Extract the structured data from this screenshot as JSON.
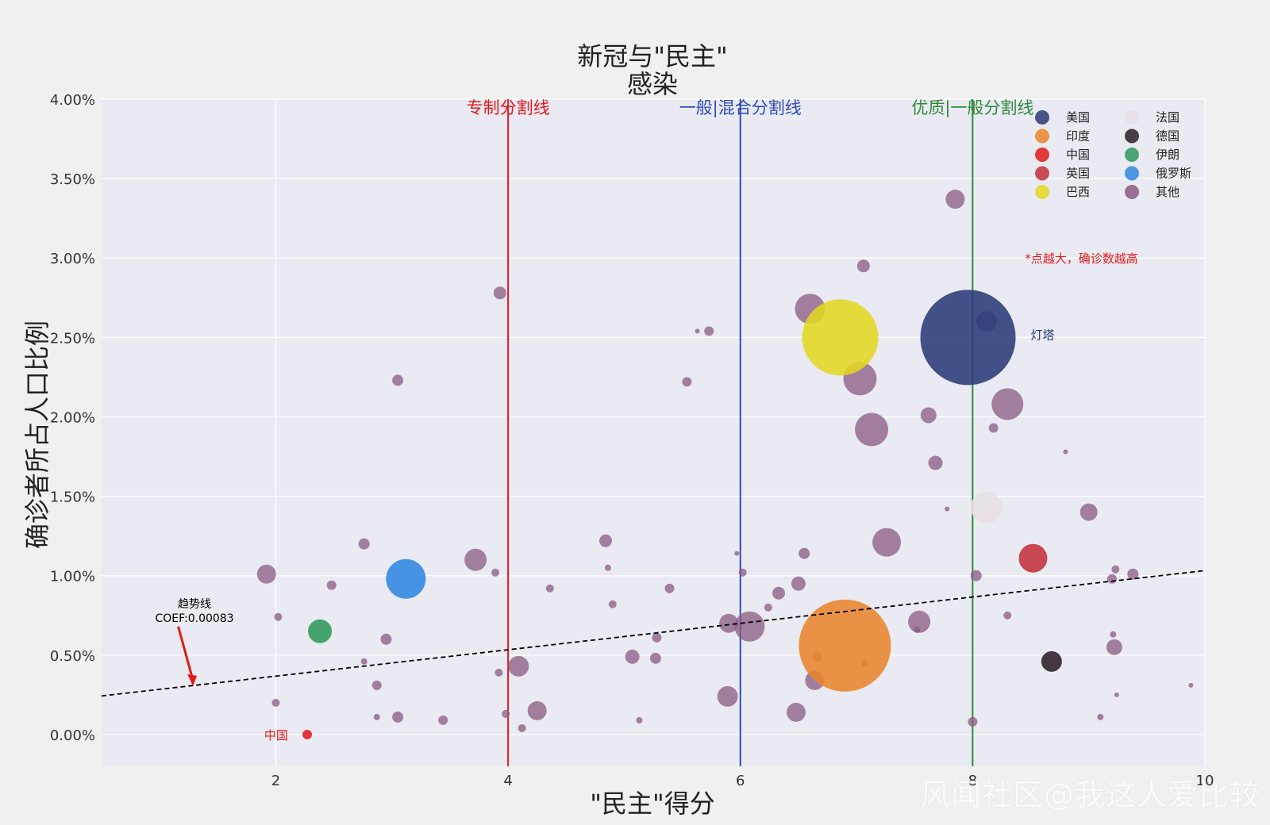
{
  "chart_data": {
    "type": "scatter",
    "title": "新冠与\"民主\"",
    "subtitle": "感染",
    "xlabel": "\"民主\"得分",
    "ylabel": "确诊者所占人口比例",
    "xlim": [
      0.5,
      10
    ],
    "ylim": [
      -0.2,
      4.0
    ],
    "x_ticks": [
      2,
      4,
      6,
      8,
      10
    ],
    "y_ticks": [
      0,
      0.5,
      1.0,
      1.5,
      2.0,
      2.5,
      3.0,
      3.5,
      4.0
    ],
    "y_tick_labels": [
      "0.00%",
      "0.50%",
      "1.00%",
      "1.50%",
      "2.00%",
      "2.50%",
      "3.00%",
      "3.50%",
      "4.00%"
    ],
    "x_tick_labels": [
      "2",
      "4",
      "6",
      "8",
      "10"
    ],
    "grid": true,
    "legend_position": "top-right",
    "background": "#eaeaf2",
    "vlines": [
      {
        "x": 4,
        "label": "专制分割线",
        "color": "#e31a1c"
      },
      {
        "x": 6,
        "label": "一般|混合分割线",
        "color": "#2f4bb5"
      },
      {
        "x": 8,
        "label": "优质|一般分割线",
        "color": "#2e8b3a"
      }
    ],
    "trendline": {
      "x": [
        0.5,
        10
      ],
      "y": [
        0.243,
        1.032
      ],
      "label": "趋势线",
      "coef_label": "COEF:0.00083"
    },
    "annotations": [
      {
        "text": "*点越大，确诊数越高",
        "x": 8.45,
        "y": 3.0,
        "color": "#e31a1c"
      },
      {
        "text": "灯塔",
        "x": 8.5,
        "y": 2.52,
        "color": "#1f3a6e"
      },
      {
        "text": "中国",
        "x": 1.9,
        "y": 0.0,
        "color": "#e31a1c"
      }
    ],
    "series": [
      {
        "name": "美国",
        "color": "#2a3a78",
        "points": [
          [
            7.96,
            2.5,
            60
          ]
        ]
      },
      {
        "name": "印度",
        "color": "#e8852d",
        "points": [
          [
            6.9,
            0.56,
            58
          ]
        ]
      },
      {
        "name": "中国",
        "color": "#e31a1c",
        "points": [
          [
            2.27,
            0.0,
            6
          ]
        ]
      },
      {
        "name": "英国",
        "color": "#c1303b",
        "points": [
          [
            8.52,
            1.11,
            18
          ]
        ]
      },
      {
        "name": "巴西",
        "color": "#e3d722",
        "points": [
          [
            6.86,
            2.5,
            48
          ]
        ]
      },
      {
        "name": "法国",
        "color": "#e8dfe6",
        "points": [
          [
            8.12,
            1.43,
            20
          ]
        ]
      },
      {
        "name": "德国",
        "color": "#2b1f28",
        "points": [
          [
            8.68,
            0.46,
            13
          ]
        ]
      },
      {
        "name": "伊朗",
        "color": "#2e9a5a",
        "points": [
          [
            2.38,
            0.65,
            15
          ]
        ]
      },
      {
        "name": "俄罗斯",
        "color": "#2f86e0",
        "points": [
          [
            3.12,
            0.98,
            25
          ]
        ]
      },
      {
        "name": "其他",
        "color": "#8a5a82",
        "points": [
          [
            7.85,
            3.37,
            12
          ],
          [
            7.06,
            2.95,
            8
          ],
          [
            3.93,
            2.78,
            8
          ],
          [
            6.6,
            2.68,
            19
          ],
          [
            8.12,
            2.6,
            13
          ],
          [
            5.73,
            2.54,
            6
          ],
          [
            5.63,
            2.54,
            3
          ],
          [
            3.05,
            2.23,
            7
          ],
          [
            5.54,
            2.22,
            6
          ],
          [
            7.03,
            2.24,
            21
          ],
          [
            8.3,
            2.08,
            20
          ],
          [
            7.62,
            2.01,
            10
          ],
          [
            7.13,
            1.92,
            21
          ],
          [
            8.18,
            1.93,
            6
          ],
          [
            8.8,
            1.78,
            3
          ],
          [
            7.68,
            1.71,
            9
          ],
          [
            7.78,
            1.42,
            3
          ],
          [
            9.0,
            1.4,
            11
          ],
          [
            7.26,
            1.21,
            18
          ],
          [
            2.76,
            1.2,
            7
          ],
          [
            3.72,
            1.1,
            14
          ],
          [
            4.84,
            1.22,
            8
          ],
          [
            6.55,
            1.14,
            7
          ],
          [
            5.97,
            1.14,
            3
          ],
          [
            1.92,
            1.01,
            12
          ],
          [
            3.89,
            1.02,
            5
          ],
          [
            4.86,
            1.05,
            4
          ],
          [
            6.02,
            1.02,
            5
          ],
          [
            8.03,
            1.0,
            7
          ],
          [
            9.23,
            1.04,
            5
          ],
          [
            9.38,
            1.01,
            7
          ],
          [
            9.2,
            0.98,
            6
          ],
          [
            2.48,
            0.94,
            6
          ],
          [
            4.36,
            0.92,
            5
          ],
          [
            5.39,
            0.92,
            6
          ],
          [
            6.5,
            0.95,
            9
          ],
          [
            6.33,
            0.89,
            8
          ],
          [
            4.9,
            0.82,
            5
          ],
          [
            6.24,
            0.8,
            5
          ],
          [
            6.08,
            0.68,
            19
          ],
          [
            5.9,
            0.7,
            12
          ],
          [
            7.54,
            0.71,
            14
          ],
          [
            2.02,
            0.74,
            5
          ],
          [
            8.3,
            0.75,
            5
          ],
          [
            2.95,
            0.6,
            7
          ],
          [
            5.28,
            0.61,
            6
          ],
          [
            6.64,
            0.34,
            12
          ],
          [
            4.09,
            0.43,
            13
          ],
          [
            5.07,
            0.49,
            9
          ],
          [
            5.27,
            0.48,
            7
          ],
          [
            9.22,
            0.55,
            10
          ],
          [
            9.21,
            0.63,
            4
          ],
          [
            2.76,
            0.46,
            4
          ],
          [
            3.92,
            0.39,
            5
          ],
          [
            2.87,
            0.31,
            6
          ],
          [
            5.89,
            0.24,
            13
          ],
          [
            6.48,
            0.14,
            12
          ],
          [
            4.25,
            0.15,
            12
          ],
          [
            2.0,
            0.2,
            5
          ],
          [
            3.05,
            0.11,
            7
          ],
          [
            3.44,
            0.09,
            6
          ],
          [
            2.87,
            0.11,
            4
          ],
          [
            3.98,
            0.13,
            5
          ],
          [
            5.13,
            0.09,
            4
          ],
          [
            8.0,
            0.08,
            6
          ],
          [
            9.1,
            0.11,
            4
          ],
          [
            4.12,
            0.04,
            5
          ],
          [
            9.88,
            0.31,
            3
          ],
          [
            9.24,
            0.25,
            3
          ],
          [
            6.66,
            0.49,
            6
          ],
          [
            7.07,
            0.45,
            4
          ],
          [
            7.52,
            0.66,
            4
          ]
        ]
      }
    ]
  },
  "watermark": "风闻社区@我这人爱比较"
}
